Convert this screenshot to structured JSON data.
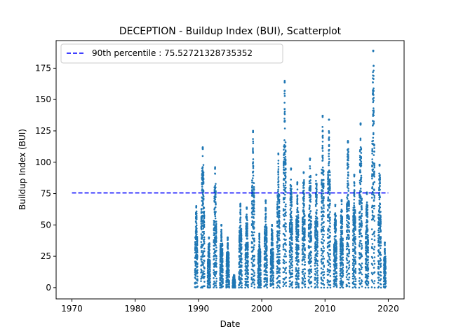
{
  "chart_data": {
    "type": "scatter",
    "title": "DECEPTION - Buildup Index (BUI), Scatterplot",
    "xlabel": "Date",
    "ylabel": "Buildup Index (BUI)",
    "xlim": [
      1967.5,
      2022.5
    ],
    "ylim": [
      -9,
      197
    ],
    "x_ticks": [
      "1970",
      "1980",
      "1990",
      "2000",
      "2010",
      "2020"
    ],
    "y_ticks": [
      "0",
      "25",
      "50",
      "75",
      "100",
      "125",
      "150",
      "175"
    ],
    "grid": false,
    "legend_position": "upper-left",
    "reference_line": {
      "label": "90th percentile : 75.52721328735352",
      "value": 75.52721328735352,
      "x_range": [
        1970,
        2020
      ],
      "style": "dashed",
      "color": "#0000ff"
    },
    "series": [
      {
        "color": "#1f77b4",
        "seasons": [
          {
            "start": 1989.45,
            "end": 1989.85,
            "peak": 65
          },
          {
            "start": 1990.4,
            "end": 1990.95,
            "peak": 112
          },
          {
            "start": 1991.45,
            "end": 1991.85,
            "peak": 40
          },
          {
            "start": 1992.4,
            "end": 1992.85,
            "peak": 96
          },
          {
            "start": 1993.4,
            "end": 1993.85,
            "peak": 50
          },
          {
            "start": 1994.4,
            "end": 1994.85,
            "peak": 40
          },
          {
            "start": 1995.4,
            "end": 1995.8,
            "peak": 10
          },
          {
            "start": 1996.4,
            "end": 1996.85,
            "peak": 67
          },
          {
            "start": 1997.4,
            "end": 1997.85,
            "peak": 64
          },
          {
            "start": 1998.4,
            "end": 1998.85,
            "peak": 125
          },
          {
            "start": 1999.4,
            "end": 1999.85,
            "peak": 43
          },
          {
            "start": 2000.4,
            "end": 2000.85,
            "peak": 70
          },
          {
            "start": 2001.4,
            "end": 2001.85,
            "peak": 50
          },
          {
            "start": 2002.4,
            "end": 2002.85,
            "peak": 107
          },
          {
            "start": 2003.4,
            "end": 2003.85,
            "peak": 165
          },
          {
            "start": 2004.4,
            "end": 2004.85,
            "peak": 95
          },
          {
            "start": 2005.4,
            "end": 2005.85,
            "peak": 84
          },
          {
            "start": 2006.4,
            "end": 2006.85,
            "peak": 92
          },
          {
            "start": 2007.4,
            "end": 2007.85,
            "peak": 103
          },
          {
            "start": 2008.4,
            "end": 2008.85,
            "peak": 90
          },
          {
            "start": 2009.4,
            "end": 2009.85,
            "peak": 137
          },
          {
            "start": 2010.4,
            "end": 2010.85,
            "peak": 134
          },
          {
            "start": 2011.4,
            "end": 2011.85,
            "peak": 66
          },
          {
            "start": 2012.4,
            "end": 2012.85,
            "peak": 70
          },
          {
            "start": 2013.4,
            "end": 2013.85,
            "peak": 117
          },
          {
            "start": 2014.4,
            "end": 2014.85,
            "peak": 90
          },
          {
            "start": 2015.4,
            "end": 2015.85,
            "peak": 131
          },
          {
            "start": 2016.4,
            "end": 2016.85,
            "peak": 76
          },
          {
            "start": 2017.4,
            "end": 2017.85,
            "peak": 189
          },
          {
            "start": 2018.4,
            "end": 2018.85,
            "peak": 98
          },
          {
            "start": 2019.3,
            "end": 2019.6,
            "peak": 36
          }
        ]
      }
    ]
  }
}
